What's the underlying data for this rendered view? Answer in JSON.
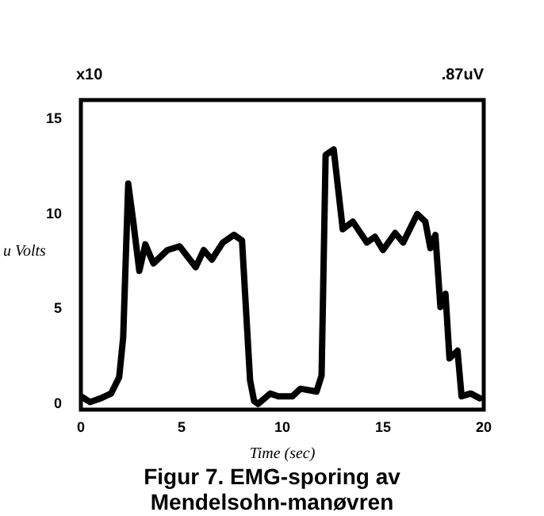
{
  "chart_data": {
    "type": "line",
    "title": "Figur 7. EMG-sporing av Mendelsohn-manøvren",
    "xlabel": "Time (sec)",
    "ylabel": "u Volts",
    "annotations": [
      "x10",
      ".87uV"
    ],
    "xlim": [
      0,
      20
    ],
    "xticks": [
      0,
      5,
      10,
      15,
      20
    ],
    "ylim": [
      -0.3,
      16
    ],
    "yticks": [
      0,
      5,
      10,
      15
    ],
    "grid": false,
    "legend": false,
    "marker": "none",
    "line_style": "solid",
    "series": [
      {
        "color": "#000000",
        "x": [
          0,
          0.45,
          1,
          1.5,
          1.9,
          2.1,
          2.35,
          2.6,
          2.9,
          3.2,
          3.6,
          4.3,
          4.9,
          5.7,
          6.1,
          6.5,
          7.05,
          7.6,
          8.0,
          8.4,
          8.6,
          8.8,
          9.4,
          9.8,
          10.5,
          10.9,
          11.7,
          11.95,
          12.15,
          12.55,
          13.0,
          13.5,
          14.2,
          14.6,
          15.0,
          15.6,
          16.0,
          16.7,
          17.1,
          17.35,
          17.6,
          17.85,
          18.1,
          18.3,
          18.7,
          18.9,
          19.35,
          19.8
        ],
        "values": [
          0.4,
          0.1,
          0.3,
          0.55,
          1.4,
          3.5,
          11.6,
          9.6,
          7.0,
          8.4,
          7.4,
          8.1,
          8.3,
          7.2,
          8.1,
          7.6,
          8.5,
          8.9,
          8.6,
          1.25,
          0.15,
          0,
          0.55,
          0.4,
          0.4,
          0.8,
          0.65,
          1.5,
          13.1,
          13.4,
          9.2,
          9.6,
          8.5,
          8.8,
          8.1,
          9.0,
          8.5,
          10.0,
          9.6,
          8.2,
          8.9,
          5.1,
          5.8,
          2.4,
          2.8,
          0.4,
          0.55,
          0.3
        ]
      }
    ]
  }
}
